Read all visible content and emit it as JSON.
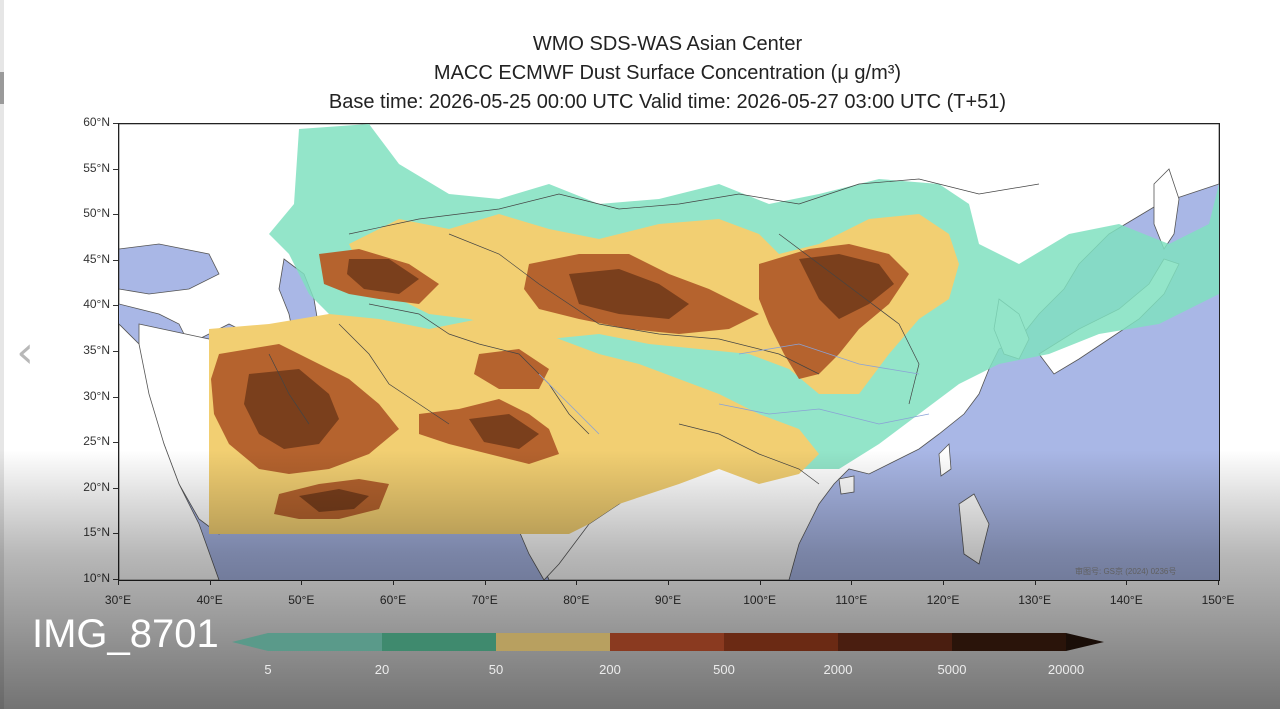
{
  "viewer": {
    "prev_icon": "chevron-left-icon",
    "prev_glyph": "‹",
    "caption": "IMG_8701"
  },
  "figure": {
    "title_1": "WMO SDS-WAS Asian Center",
    "title_2": "MACC ECMWF Dust Surface Concentration (μ g/m³)",
    "title_3": "Base time: 2026-05-25 00:00 UTC Valid time: 2026-05-27 03:00 UTC (T+51)",
    "watermark": "审图号: GS京 (2024) 0236号"
  },
  "axes": {
    "lat_labels": [
      "60°N",
      "55°N",
      "50°N",
      "45°N",
      "40°N",
      "35°N",
      "30°N",
      "25°N",
      "20°N",
      "15°N",
      "10°N"
    ],
    "lon_labels": [
      "30°E",
      "40°E",
      "50°E",
      "60°E",
      "70°E",
      "80°E",
      "90°E",
      "100°E",
      "110°E",
      "120°E",
      "130°E",
      "140°E",
      "150°E"
    ],
    "lat_range": [
      10,
      60
    ],
    "lon_range": [
      30,
      150
    ]
  },
  "colorbar": {
    "labels": [
      "5",
      "20",
      "50",
      "200",
      "500",
      "2000",
      "5000",
      "20000"
    ],
    "colors": [
      "#5a9a8a",
      "#3f8a6e",
      "#b8a060",
      "#8a3a20",
      "#6b2a14",
      "#4a1e10",
      "#2a140a",
      "#1a0e08"
    ]
  },
  "colors": {
    "ocean": "#a9b7e6",
    "land": "#ffffff",
    "dust_light": "#80e0c0",
    "dust_yellow": "#f2cf72",
    "dust_brown": "#b5632e",
    "dust_dark": "#7a3f1c"
  }
}
